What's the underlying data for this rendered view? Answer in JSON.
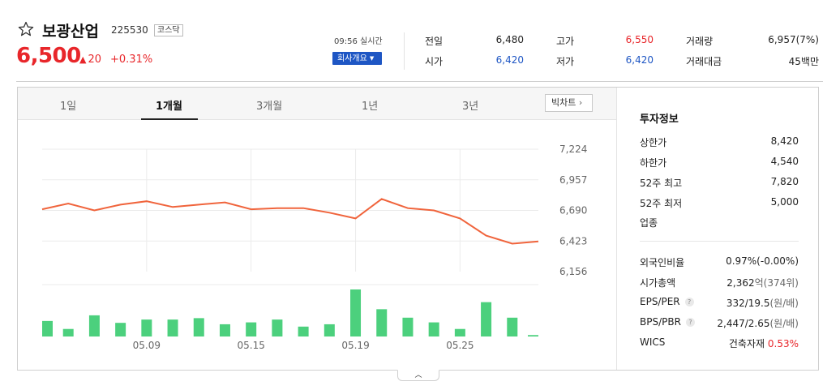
{
  "stock": {
    "name": "보광산업",
    "code": "225530",
    "market": "코스닥",
    "price": "6,500",
    "change_arrow": "▲",
    "change": "20",
    "change_pct": "+0.31%",
    "realtime": "09:56 실시간",
    "company_button": "회사개요"
  },
  "quotes": {
    "prev_close_label": "전일",
    "prev_close": "6,480",
    "high_label": "고가",
    "high": "6,550",
    "volume_label": "거래량",
    "volume": "6,957(7%)",
    "open_label": "시가",
    "open": "6,420",
    "low_label": "저가",
    "low": "6,420",
    "trade_value_label": "거래대금",
    "trade_value": "45백만"
  },
  "tabs": [
    "1일",
    "1개월",
    "3개월",
    "1년",
    "3년"
  ],
  "active_tab": "1개월",
  "big_chart_button": "빅차트",
  "chart_data": {
    "type": "line",
    "title": "",
    "xlabel": "",
    "ylabel": "",
    "x_tick_labels": [
      "05.09",
      "05.15",
      "05.19",
      "05.25"
    ],
    "y_tick_labels": [
      "7,224",
      "6,957",
      "6,690",
      "6,423",
      "6,156"
    ],
    "ylim": [
      6156,
      7224
    ],
    "grid": true,
    "series": [
      {
        "values": [
          6700,
          6750,
          6690,
          6740,
          6770,
          6720,
          6740,
          6760,
          6700,
          6710,
          6710,
          6670,
          6620,
          6790,
          6710,
          6690,
          6620,
          6470,
          6400,
          6420
        ],
        "color": "#f0643c"
      }
    ],
    "volume": {
      "type": "bar",
      "values": [
        0.33,
        0.16,
        0.45,
        0.29,
        0.36,
        0.36,
        0.39,
        0.26,
        0.3,
        0.36,
        0.21,
        0.26,
        1.0,
        0.58,
        0.4,
        0.3,
        0.16,
        0.73,
        0.4,
        0.03
      ],
      "color": "#4cd07d"
    }
  },
  "info": {
    "title": "투자정보",
    "upper_limit_label": "상한가",
    "upper_limit": "8,420",
    "lower_limit_label": "하한가",
    "lower_limit": "4,540",
    "high52_label": "52주 최고",
    "high52": "7,820",
    "low52_label": "52주 최저",
    "low52": "5,000",
    "sector_label": "업종",
    "foreign_label": "외국인비율",
    "foreign": "0.97%(-0.00%)",
    "mcap_label": "시가총액",
    "mcap_num": "2,362",
    "mcap_unit": "억(374위)",
    "eps_label": "EPS/PER",
    "eps_num": "332/19.5",
    "eps_unit": "(원/배)",
    "bps_label": "BPS/PBR",
    "bps_num": "2,447/2.65",
    "bps_unit": "(원/배)",
    "wics_label": "WICS",
    "wics_name": "건축자재",
    "wics_pct": "0.53%"
  },
  "colors": {
    "up": "#e8262a",
    "down": "#1e56c4",
    "line": "#f0643c",
    "volume": "#4cd07d"
  }
}
